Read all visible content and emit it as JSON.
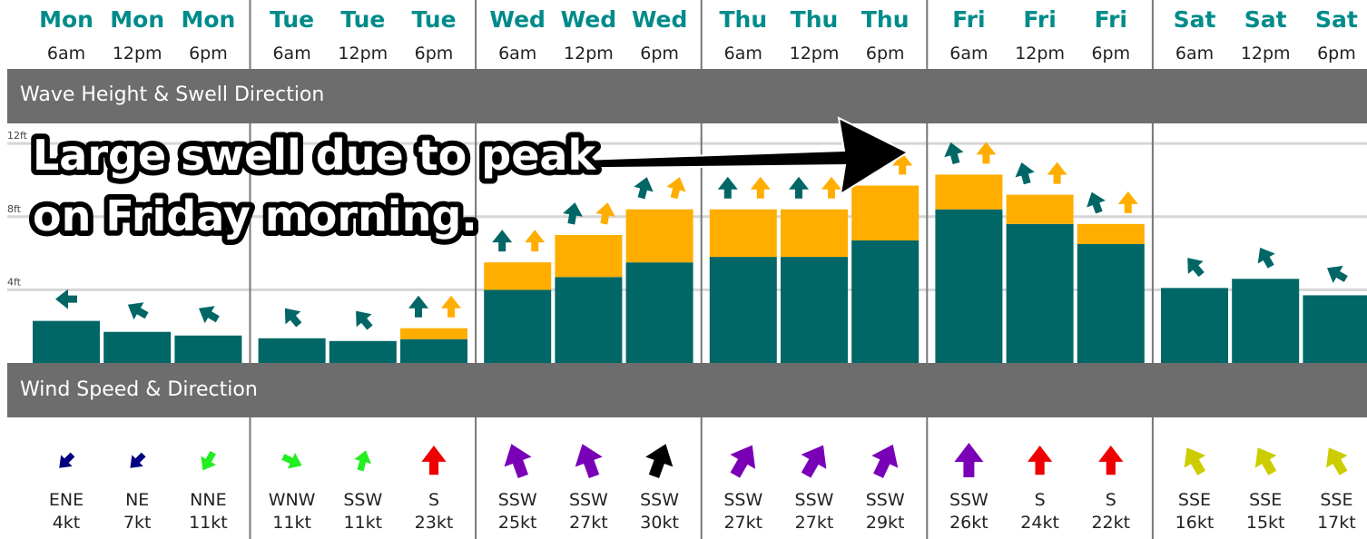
{
  "sections": {
    "wave": "Wave Height & Swell Direction",
    "wind": "Wind Speed & Direction"
  },
  "annotation": {
    "line1": "Large swell due to peak",
    "line2": "on Friday morning."
  },
  "colors": {
    "day_label": "#008b8b",
    "primary_swell": "#006666",
    "secondary_swell": "#ffae00",
    "gridline": "#d6d6d6",
    "band": "#6d6d6d"
  },
  "chart_data": {
    "type": "bar",
    "stacked": true,
    "ylim": [
      0,
      13.1
    ],
    "yticks": [
      {
        "value": 4,
        "label": "4ft"
      },
      {
        "value": 8,
        "label": "8ft"
      },
      {
        "value": 12,
        "label": "12ft"
      }
    ],
    "grid": true,
    "categories": [
      {
        "day": "Mon",
        "time": "6am"
      },
      {
        "day": "Mon",
        "time": "12pm"
      },
      {
        "day": "Mon",
        "time": "6pm"
      },
      {
        "day": "Tue",
        "time": "6am"
      },
      {
        "day": "Tue",
        "time": "12pm"
      },
      {
        "day": "Tue",
        "time": "6pm"
      },
      {
        "day": "Wed",
        "time": "6am"
      },
      {
        "day": "Wed",
        "time": "12pm"
      },
      {
        "day": "Wed",
        "time": "6pm"
      },
      {
        "day": "Thu",
        "time": "6am"
      },
      {
        "day": "Thu",
        "time": "12pm"
      },
      {
        "day": "Thu",
        "time": "6pm"
      },
      {
        "day": "Fri",
        "time": "6am"
      },
      {
        "day": "Fri",
        "time": "12pm"
      },
      {
        "day": "Fri",
        "time": "6pm"
      },
      {
        "day": "Sat",
        "time": "6am"
      },
      {
        "day": "Sat",
        "time": "12pm"
      },
      {
        "day": "Sat",
        "time": "6pm"
      }
    ],
    "series": [
      {
        "color": "#006666",
        "values": [
          2.3,
          1.7,
          1.5,
          1.35,
          1.2,
          1.3,
          4.0,
          4.7,
          5.5,
          5.8,
          5.8,
          6.7,
          8.4,
          7.6,
          6.5,
          4.1,
          4.6,
          3.7
        ],
        "direction_deg": [
          -90,
          -60,
          -60,
          -40,
          -40,
          0,
          0,
          10,
          15,
          0,
          0,
          0,
          -15,
          -15,
          -20,
          -40,
          -30,
          -60
        ]
      },
      {
        "color": "#ffae00",
        "values": [
          0,
          0,
          0,
          0,
          0,
          0.6,
          1.5,
          2.3,
          2.9,
          2.6,
          2.6,
          3.0,
          1.9,
          1.6,
          1.1,
          0,
          0,
          0
        ],
        "direction_deg": [
          null,
          null,
          null,
          null,
          null,
          0,
          0,
          10,
          15,
          0,
          0,
          0,
          0,
          0,
          0,
          null,
          null,
          null
        ]
      }
    ]
  },
  "wind": [
    {
      "dir": "ENE",
      "speed": "4kt",
      "color": "#000080",
      "rot": -135,
      "size": 0.55
    },
    {
      "dir": "NE",
      "speed": "7kt",
      "color": "#000080",
      "rot": -135,
      "size": 0.55
    },
    {
      "dir": "NNE",
      "speed": "11kt",
      "color": "#22ee22",
      "rot": -150,
      "size": 0.6
    },
    {
      "dir": "WNW",
      "speed": "11kt",
      "color": "#22ee22",
      "rot": 115,
      "size": 0.6
    },
    {
      "dir": "SSW",
      "speed": "11kt",
      "color": "#22ee22",
      "rot": 15,
      "size": 0.6
    },
    {
      "dir": "S",
      "speed": "23kt",
      "color": "#ee0000",
      "rot": 0,
      "size": 0.85
    },
    {
      "dir": "SSW",
      "speed": "25kt",
      "color": "#7a00b8",
      "rot": -20,
      "size": 1.0
    },
    {
      "dir": "SSW",
      "speed": "27kt",
      "color": "#7a00b8",
      "rot": -20,
      "size": 1.0
    },
    {
      "dir": "SSW",
      "speed": "30kt",
      "color": "#000000",
      "rot": 20,
      "size": 1.0
    },
    {
      "dir": "SSW",
      "speed": "27kt",
      "color": "#7a00b8",
      "rot": 30,
      "size": 1.0
    },
    {
      "dir": "SSW",
      "speed": "27kt",
      "color": "#7a00b8",
      "rot": 30,
      "size": 1.0
    },
    {
      "dir": "SSW",
      "speed": "29kt",
      "color": "#7a00b8",
      "rot": 25,
      "size": 1.0
    },
    {
      "dir": "SSW",
      "speed": "26kt",
      "color": "#7a00b8",
      "rot": 0,
      "size": 1.0
    },
    {
      "dir": "S",
      "speed": "24kt",
      "color": "#ee0000",
      "rot": 0,
      "size": 0.85
    },
    {
      "dir": "S",
      "speed": "22kt",
      "color": "#ee0000",
      "rot": 0,
      "size": 0.85
    },
    {
      "dir": "SSE",
      "speed": "16kt",
      "color": "#cccc00",
      "rot": -30,
      "size": 0.85
    },
    {
      "dir": "SSE",
      "speed": "15kt",
      "color": "#cccc00",
      "rot": -30,
      "size": 0.85
    },
    {
      "dir": "SSE",
      "speed": "17kt",
      "color": "#cccc00",
      "rot": -30,
      "size": 0.85
    }
  ]
}
